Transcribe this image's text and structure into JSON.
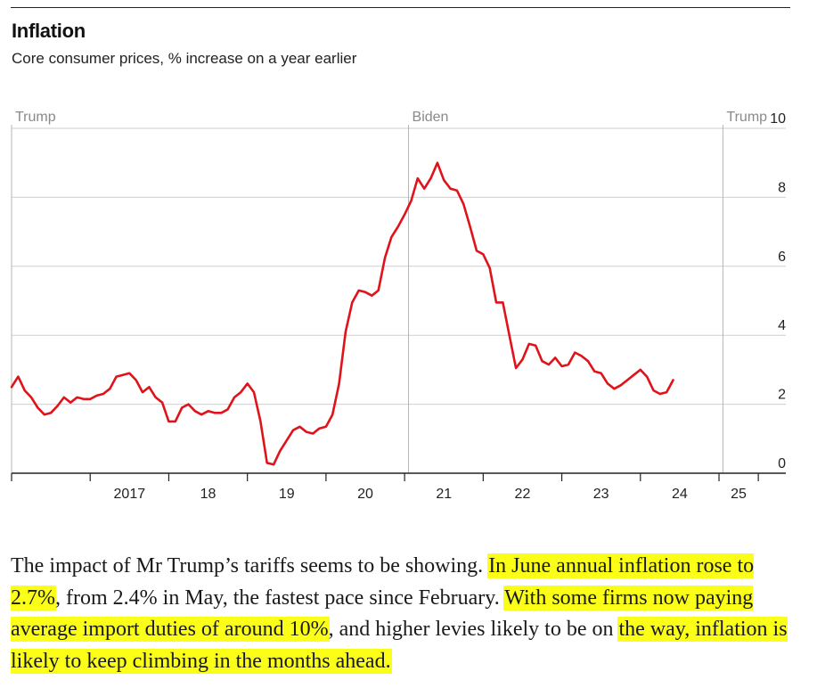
{
  "header": {
    "title": "Inflation",
    "subtitle": "Core consumer prices, % increase on a year earlier"
  },
  "chart_data": {
    "type": "line",
    "title": "Inflation",
    "subtitle": "Core consumer prices, % increase on a year earlier",
    "xlabel": "",
    "ylabel": "",
    "ylim": [
      0,
      10
    ],
    "yticks": [
      "0",
      "2",
      "4",
      "6",
      "8",
      "10"
    ],
    "grid": true,
    "x_range": [
      2016.0,
      2025.85
    ],
    "xtick_labels": [
      {
        "year": 2017,
        "label": "2017"
      },
      {
        "year": 2018,
        "label": "18"
      },
      {
        "year": 2019,
        "label": "19"
      },
      {
        "year": 2020,
        "label": "20"
      },
      {
        "year": 2021,
        "label": "21"
      },
      {
        "year": 2022,
        "label": "22"
      },
      {
        "year": 2023,
        "label": "23"
      },
      {
        "year": 2024,
        "label": "24"
      },
      {
        "year": 2025,
        "label": "25"
      }
    ],
    "annotations": [
      {
        "label": "Trump",
        "at": 2016.0
      },
      {
        "label": "Biden",
        "at": 2021.05
      },
      {
        "label": "Trump",
        "at": 2025.05
      }
    ],
    "series": [
      {
        "name": "Core consumer prices",
        "color": "#e0121a",
        "start": 2016.0,
        "step": 0.0833333,
        "values": [
          2.5,
          2.8,
          2.4,
          2.2,
          1.9,
          1.7,
          1.75,
          1.95,
          2.2,
          2.05,
          2.2,
          2.15,
          2.15,
          2.25,
          2.3,
          2.45,
          2.8,
          2.85,
          2.9,
          2.7,
          2.35,
          2.5,
          2.2,
          2.05,
          1.5,
          1.5,
          1.9,
          2.0,
          1.8,
          1.7,
          1.8,
          1.75,
          1.75,
          1.85,
          2.2,
          2.35,
          2.6,
          2.35,
          1.5,
          0.3,
          0.25,
          0.65,
          0.95,
          1.25,
          1.35,
          1.2,
          1.15,
          1.3,
          1.35,
          1.7,
          2.6,
          4.1,
          4.95,
          5.3,
          5.25,
          5.15,
          5.3,
          6.25,
          6.85,
          7.15,
          7.5,
          7.9,
          8.55,
          8.25,
          8.55,
          9.0,
          8.5,
          8.25,
          8.2,
          7.8,
          7.15,
          6.45,
          6.35,
          5.95,
          4.95,
          4.95,
          4.0,
          3.05,
          3.3,
          3.75,
          3.7,
          3.25,
          3.15,
          3.35,
          3.1,
          3.15,
          3.5,
          3.4,
          3.25,
          2.95,
          2.9,
          2.6,
          2.45,
          2.55,
          2.7,
          2.85,
          3.0,
          2.8,
          2.4,
          2.3,
          2.35,
          2.7
        ]
      }
    ]
  },
  "article": {
    "p1": "The impact of Mr Trump’s tariffs seems to be showing. ",
    "h1": "In June annual inflation rose to 2.7%",
    "p2": ", from 2.4% in May, the fastest pace since February. ",
    "h2": "With some firms now paying average import duties of around 10%",
    "p3": ", and higher levies likely to be on ",
    "h3": "the way, inflation is likely to keep climbing in the months ahead."
  }
}
